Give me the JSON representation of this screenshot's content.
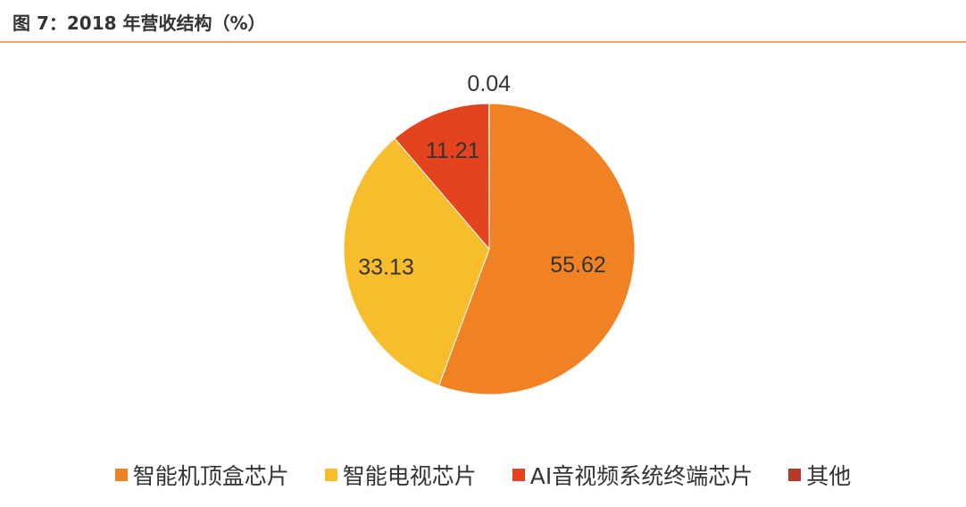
{
  "title": "图 7：2018 年营收结构（%）",
  "chart_data": {
    "type": "pie",
    "title": "图 7：2018 年营收结构（%）",
    "categories": [
      "智能机顶盒芯片",
      "智能电视芯片",
      "AI音视频系统终端芯片",
      "其他"
    ],
    "values": [
      55.62,
      33.13,
      11.21,
      0.04
    ],
    "value_labels": [
      "55.62",
      "33.13",
      "11.21",
      "0.04"
    ],
    "colors": [
      "#F08223",
      "#F8BD2C",
      "#E5431D",
      "#B5392B"
    ],
    "start_angle_deg": 0,
    "direction": "clockwise",
    "legend_position": "bottom"
  }
}
